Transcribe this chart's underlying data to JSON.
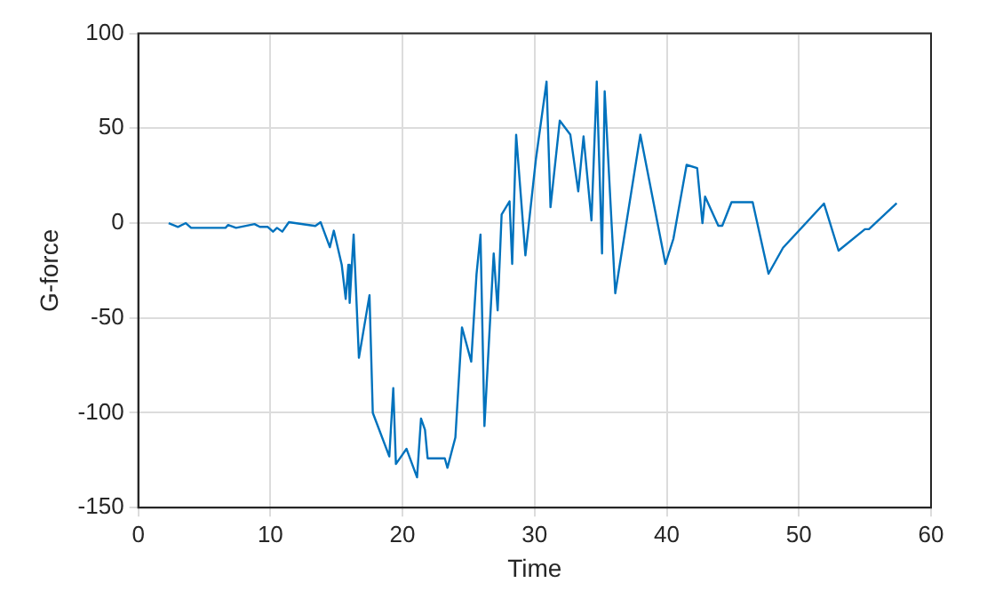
{
  "chart_data": {
    "type": "line",
    "xlabel": "Time",
    "ylabel": "G-force",
    "xlim": [
      0,
      60
    ],
    "xticks": [
      0,
      10,
      20,
      30,
      40,
      50,
      60
    ],
    "ylim": [
      -150,
      100
    ],
    "yticks": [
      -150,
      -100,
      -50,
      0,
      50,
      100
    ],
    "grid": true,
    "marker": "none",
    "line_style": "solid",
    "series": [
      {
        "color": "#0072bd",
        "x": [
          2.3,
          3.0,
          3.6,
          4.0,
          6.6,
          6.8,
          7.4,
          8.8,
          9.2,
          9.8,
          10.2,
          10.5,
          10.9,
          11.4,
          13.4,
          13.8,
          14.5,
          14.8,
          15.4,
          15.7,
          15.9,
          16.0,
          16.3,
          16.7,
          17.5,
          17.75,
          19.0,
          19.3,
          19.5,
          20.3,
          21.1,
          21.4,
          21.7,
          21.9,
          23.2,
          23.4,
          24.0,
          24.5,
          25.2,
          25.6,
          25.9,
          26.2,
          26.9,
          27.2,
          27.5,
          28.1,
          28.3,
          28.6,
          29.3,
          30.1,
          30.9,
          31.2,
          31.9,
          32.7,
          33.3,
          33.7,
          34.3,
          34.7,
          35.1,
          35.3,
          36.1,
          38.0,
          39.9,
          40.5,
          41.5,
          42.3,
          42.7,
          42.9,
          43.9,
          44.2,
          44.9,
          46.5,
          47.7,
          48.8,
          51.9,
          53.0,
          55.0,
          55.3,
          57.4
        ],
        "values": [
          0,
          -2,
          0,
          -2.5,
          -2.5,
          -1,
          -2.5,
          -0.5,
          -2,
          -2,
          -4.5,
          -2.5,
          -4.5,
          0.5,
          -1.5,
          0.5,
          -12.7,
          -4,
          -22,
          -40,
          -22,
          -42,
          -6,
          -71,
          -38,
          -100,
          -123,
          -87,
          -127,
          -119,
          -134,
          -103,
          -109,
          -124,
          -124,
          -129,
          -113,
          -55,
          -73,
          -27,
          -6,
          -107,
          -16,
          -46,
          4.5,
          11.5,
          -21.5,
          46.6,
          -17,
          34,
          74.6,
          8.4,
          54,
          46.6,
          16.7,
          45.7,
          1.4,
          74.6,
          -16,
          69.5,
          -37,
          46.6,
          -21.5,
          -8.3,
          30.7,
          29,
          0,
          14,
          -1.4,
          -1.4,
          11,
          11,
          -26.7,
          -13,
          10.3,
          -14.5,
          -3.2,
          -3.2,
          10.5
        ]
      }
    ]
  }
}
